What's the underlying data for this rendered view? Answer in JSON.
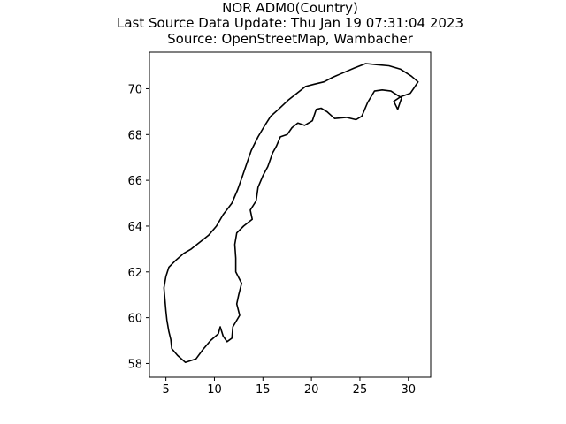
{
  "title": {
    "line1": "NOR ADM0(Country)",
    "line2": "Last Source Data Update: Thu Jan 19 07:31:04 2023",
    "line3": "Source: OpenStreetMap, Wambacher"
  },
  "chart_data": {
    "type": "map",
    "region": "Norway",
    "xlim": [
      3.3,
      32.3
    ],
    "ylim": [
      57.4,
      71.6
    ],
    "xticks": [
      5,
      10,
      15,
      20,
      25,
      30
    ],
    "yticks": [
      58,
      60,
      62,
      64,
      66,
      68,
      70
    ],
    "xtick_labels": [
      "5",
      "10",
      "15",
      "20",
      "25",
      "30"
    ],
    "ytick_labels": [
      "58",
      "60",
      "62",
      "64",
      "66",
      "68",
      "70"
    ],
    "grid": false,
    "outline_color": "#000000",
    "outline": [
      [
        7.0,
        58.05
      ],
      [
        6.2,
        58.35
      ],
      [
        5.6,
        58.65
      ],
      [
        5.5,
        59.05
      ],
      [
        5.3,
        59.4
      ],
      [
        5.1,
        59.9
      ],
      [
        5.0,
        60.3
      ],
      [
        4.9,
        60.8
      ],
      [
        4.8,
        61.3
      ],
      [
        5.0,
        61.8
      ],
      [
        5.3,
        62.2
      ],
      [
        6.0,
        62.5
      ],
      [
        6.8,
        62.8
      ],
      [
        7.6,
        63.0
      ],
      [
        8.5,
        63.3
      ],
      [
        9.4,
        63.6
      ],
      [
        10.2,
        64.0
      ],
      [
        10.9,
        64.5
      ],
      [
        11.8,
        65.0
      ],
      [
        12.4,
        65.6
      ],
      [
        12.9,
        66.2
      ],
      [
        13.3,
        66.7
      ],
      [
        13.8,
        67.3
      ],
      [
        14.5,
        67.9
      ],
      [
        15.2,
        68.4
      ],
      [
        15.8,
        68.8
      ],
      [
        16.6,
        69.1
      ],
      [
        17.6,
        69.5
      ],
      [
        18.5,
        69.8
      ],
      [
        19.4,
        70.1
      ],
      [
        20.3,
        70.2
      ],
      [
        21.3,
        70.3
      ],
      [
        22.2,
        70.5
      ],
      [
        23.3,
        70.7
      ],
      [
        24.4,
        70.9
      ],
      [
        25.6,
        71.1
      ],
      [
        26.8,
        71.05
      ],
      [
        28.0,
        71.0
      ],
      [
        29.2,
        70.85
      ],
      [
        30.3,
        70.55
      ],
      [
        31.0,
        70.3
      ],
      [
        30.6,
        70.05
      ],
      [
        30.2,
        69.8
      ],
      [
        29.2,
        69.65
      ],
      [
        28.5,
        69.45
      ],
      [
        28.9,
        69.1
      ],
      [
        29.3,
        69.6
      ],
      [
        28.2,
        69.9
      ],
      [
        27.3,
        69.95
      ],
      [
        26.5,
        69.9
      ],
      [
        25.8,
        69.4
      ],
      [
        25.2,
        68.8
      ],
      [
        24.6,
        68.65
      ],
      [
        23.6,
        68.75
      ],
      [
        22.4,
        68.7
      ],
      [
        21.6,
        69.0
      ],
      [
        21.0,
        69.15
      ],
      [
        20.5,
        69.1
      ],
      [
        20.1,
        68.6
      ],
      [
        19.3,
        68.4
      ],
      [
        18.6,
        68.5
      ],
      [
        18.0,
        68.3
      ],
      [
        17.5,
        68.0
      ],
      [
        16.8,
        67.9
      ],
      [
        16.4,
        67.5
      ],
      [
        16.0,
        67.2
      ],
      [
        15.5,
        66.6
      ],
      [
        15.0,
        66.2
      ],
      [
        14.5,
        65.7
      ],
      [
        14.3,
        65.1
      ],
      [
        13.7,
        64.7
      ],
      [
        13.9,
        64.3
      ],
      [
        13.0,
        64.0
      ],
      [
        12.3,
        63.7
      ],
      [
        12.1,
        63.2
      ],
      [
        12.2,
        62.6
      ],
      [
        12.2,
        62.0
      ],
      [
        12.8,
        61.5
      ],
      [
        12.5,
        61.0
      ],
      [
        12.3,
        60.6
      ],
      [
        12.6,
        60.1
      ],
      [
        11.9,
        59.6
      ],
      [
        11.8,
        59.1
      ],
      [
        11.3,
        58.95
      ],
      [
        10.9,
        59.2
      ],
      [
        10.6,
        59.6
      ],
      [
        10.4,
        59.3
      ],
      [
        9.6,
        59.0
      ],
      [
        8.8,
        58.6
      ],
      [
        8.1,
        58.2
      ],
      [
        7.0,
        58.05
      ]
    ]
  }
}
